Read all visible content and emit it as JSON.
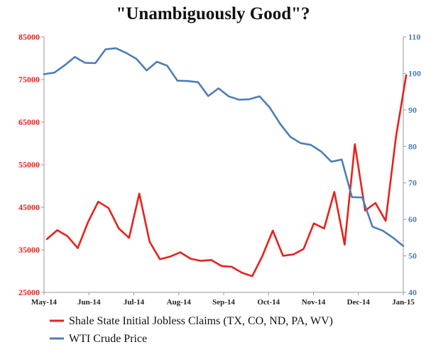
{
  "chart_data": {
    "type": "line",
    "title": "\"Unambiguously Good\"?",
    "x_tick_labels": [
      "May-14",
      "Jun-14",
      "Jul-14",
      "Aug-14",
      "Sep-14",
      "Oct-14",
      "Nov-14",
      "Dec-14",
      "Jan-15"
    ],
    "y_left": {
      "min": 25000,
      "max": 85000,
      "ticks": [
        25000,
        35000,
        45000,
        55000,
        65000,
        75000,
        85000
      ],
      "color": "#e8211b"
    },
    "y_right": {
      "min": 40,
      "max": 110,
      "ticks": [
        40,
        50,
        60,
        70,
        80,
        90,
        100,
        110
      ],
      "color": "#4d7eb5"
    },
    "grid": false,
    "legend_position": "bottom",
    "series": [
      {
        "name": "Shale State Initial Jobless Claims (TX, CO, ND, PA, WV)",
        "axis": "left",
        "color": "#e8211b",
        "points": [
          [
            "2014-05-03",
            37500
          ],
          [
            "2014-05-10",
            39600
          ],
          [
            "2014-05-17",
            38200
          ],
          [
            "2014-05-24",
            35400
          ],
          [
            "2014-05-31",
            41500
          ],
          [
            "2014-06-07",
            46300
          ],
          [
            "2014-06-14",
            44800
          ],
          [
            "2014-06-21",
            40000
          ],
          [
            "2014-06-28",
            37800
          ],
          [
            "2014-07-05",
            48200
          ],
          [
            "2014-07-12",
            36900
          ],
          [
            "2014-07-19",
            32800
          ],
          [
            "2014-07-26",
            33400
          ],
          [
            "2014-08-02",
            34400
          ],
          [
            "2014-08-09",
            32900
          ],
          [
            "2014-08-16",
            32400
          ],
          [
            "2014-08-23",
            32600
          ],
          [
            "2014-08-30",
            31200
          ],
          [
            "2014-09-06",
            31000
          ],
          [
            "2014-09-13",
            29600
          ],
          [
            "2014-09-20",
            28800
          ],
          [
            "2014-09-27",
            33600
          ],
          [
            "2014-10-04",
            39500
          ],
          [
            "2014-10-11",
            33600
          ],
          [
            "2014-10-18",
            33900
          ],
          [
            "2014-10-25",
            35200
          ],
          [
            "2014-11-01",
            41200
          ],
          [
            "2014-11-08",
            40000
          ],
          [
            "2014-11-15",
            48600
          ],
          [
            "2014-11-22",
            36200
          ],
          [
            "2014-11-29",
            59800
          ],
          [
            "2014-12-06",
            44200
          ],
          [
            "2014-12-13",
            46000
          ],
          [
            "2014-12-20",
            41800
          ],
          [
            "2014-12-27",
            61500
          ],
          [
            "2015-01-03",
            76000
          ]
        ]
      },
      {
        "name": "WTI Crude Price",
        "axis": "right",
        "color": "#4d7eb5",
        "points": [
          [
            "2014-05-01",
            99.8
          ],
          [
            "2014-05-08",
            100.2
          ],
          [
            "2014-05-15",
            102.2
          ],
          [
            "2014-05-22",
            104.5
          ],
          [
            "2014-05-29",
            102.9
          ],
          [
            "2014-06-05",
            102.8
          ],
          [
            "2014-06-12",
            106.6
          ],
          [
            "2014-06-19",
            106.9
          ],
          [
            "2014-06-26",
            105.6
          ],
          [
            "2014-07-03",
            104.0
          ],
          [
            "2014-07-10",
            100.8
          ],
          [
            "2014-07-17",
            103.2
          ],
          [
            "2014-07-24",
            102.1
          ],
          [
            "2014-07-31",
            98.0
          ],
          [
            "2014-08-07",
            97.9
          ],
          [
            "2014-08-14",
            97.6
          ],
          [
            "2014-08-21",
            93.8
          ],
          [
            "2014-08-28",
            95.9
          ],
          [
            "2014-09-04",
            93.7
          ],
          [
            "2014-09-11",
            92.8
          ],
          [
            "2014-09-18",
            92.9
          ],
          [
            "2014-09-25",
            93.7
          ],
          [
            "2014-10-02",
            90.6
          ],
          [
            "2014-10-09",
            86.2
          ],
          [
            "2014-10-16",
            82.6
          ],
          [
            "2014-10-23",
            80.9
          ],
          [
            "2014-10-30",
            80.4
          ],
          [
            "2014-11-06",
            78.6
          ],
          [
            "2014-11-13",
            75.8
          ],
          [
            "2014-11-20",
            76.4
          ],
          [
            "2014-11-27",
            66.1
          ],
          [
            "2014-12-04",
            66.0
          ],
          [
            "2014-12-11",
            58.0
          ],
          [
            "2014-12-18",
            56.9
          ],
          [
            "2014-12-25",
            55.0
          ],
          [
            "2015-01-01",
            52.7
          ]
        ]
      }
    ]
  }
}
